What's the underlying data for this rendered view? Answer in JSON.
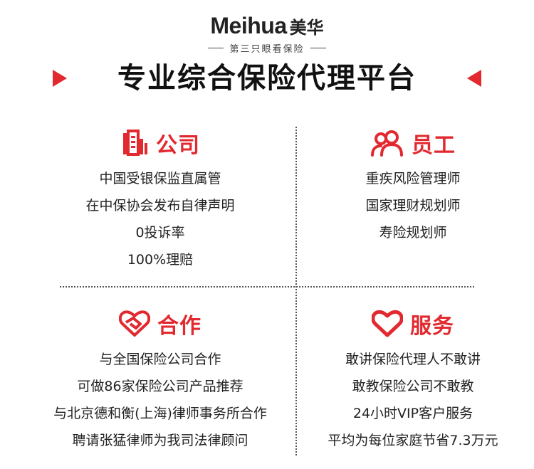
{
  "logo": {
    "brand_en": "Meihua",
    "brand_cn": "美华",
    "slogan": "第三只眼看保险"
  },
  "headline": "专业综合保险代理平台",
  "colors": {
    "accent": "#e2292f",
    "text": "#222222"
  },
  "sections": {
    "company": {
      "icon": "building-icon",
      "title": "公司",
      "items": [
        "中国受银保监直属管",
        "在中保协会发布自律声明",
        "0投诉率",
        "100%理赔"
      ]
    },
    "staff": {
      "icon": "users-icon",
      "title": "员工",
      "items": [
        "重疾风险管理师",
        "国家理财规划师",
        "寿险规划师"
      ]
    },
    "partner": {
      "icon": "handshake-heart-icon",
      "title": "合作",
      "items": [
        "与全国保险公司合作",
        "可做86家保险公司产品推荐",
        "与北京德和衡(上海)律师事务所合作",
        "聘请张猛律师为我司法律顾问"
      ]
    },
    "service": {
      "icon": "heart-icon",
      "title": "服务",
      "items": [
        "敢讲保险代理人不敢讲",
        "敢教保险公司不敢教",
        "24小时VIP客户服务",
        "平均为每位家庭节省7.3万元"
      ]
    }
  }
}
